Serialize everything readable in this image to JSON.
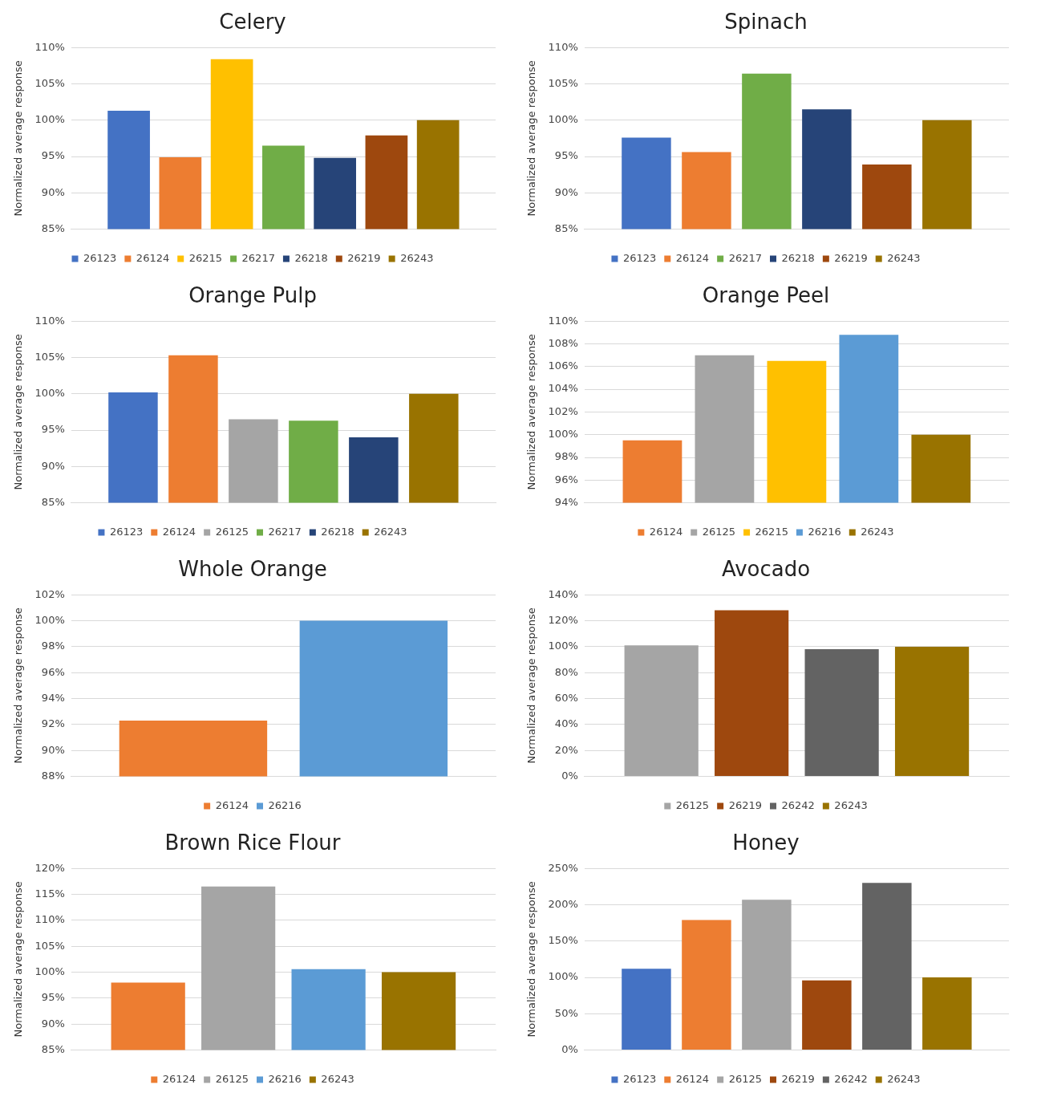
{
  "chart_data": [
    {
      "type": "bar",
      "title": "Celery",
      "ylabel": "Normalized average response",
      "categories": [
        null
      ],
      "ylim": [
        85,
        110
      ],
      "yticks": [
        {
          "value": 85,
          "label": "85%"
        },
        {
          "value": 90,
          "label": "90%"
        },
        {
          "value": 95,
          "label": "95%"
        },
        {
          "value": 100,
          "label": "100%"
        },
        {
          "value": 105,
          "label": "105%"
        },
        {
          "value": 110,
          "label": "110%"
        }
      ],
      "grid": "y",
      "legend": "bottom",
      "series": [
        {
          "name": "26123",
          "color": "#4472c4",
          "values": [
            101.3
          ]
        },
        {
          "name": "26124",
          "color": "#ed7d31",
          "values": [
            94.9
          ]
        },
        {
          "name": "26215",
          "color": "#ffc000",
          "values": [
            108.4
          ]
        },
        {
          "name": "26217",
          "color": "#70ad47",
          "values": [
            96.5
          ]
        },
        {
          "name": "26218",
          "color": "#264478",
          "values": [
            94.8
          ]
        },
        {
          "name": "26219",
          "color": "#9e480e",
          "values": [
            97.9
          ]
        },
        {
          "name": "26243",
          "color": "#997300",
          "values": [
            100
          ]
        }
      ]
    },
    {
      "type": "bar",
      "title": "Spinach",
      "ylabel": "Normalized average response",
      "categories": [
        null
      ],
      "ylim": [
        85,
        110
      ],
      "yticks": [
        {
          "value": 85,
          "label": "85%"
        },
        {
          "value": 90,
          "label": "90%"
        },
        {
          "value": 95,
          "label": "95%"
        },
        {
          "value": 100,
          "label": "100%"
        },
        {
          "value": 105,
          "label": "105%"
        },
        {
          "value": 110,
          "label": "110%"
        }
      ],
      "grid": "y",
      "legend": "bottom",
      "series": [
        {
          "name": "26123",
          "color": "#4472c4",
          "values": [
            97.6
          ]
        },
        {
          "name": "26124",
          "color": "#ed7d31",
          "values": [
            95.6
          ]
        },
        {
          "name": "26217",
          "color": "#70ad47",
          "values": [
            106.4
          ]
        },
        {
          "name": "26218",
          "color": "#264478",
          "values": [
            101.5
          ]
        },
        {
          "name": "26219",
          "color": "#9e480e",
          "values": [
            93.9
          ]
        },
        {
          "name": "26243",
          "color": "#997300",
          "values": [
            100
          ]
        }
      ]
    },
    {
      "type": "bar",
      "title": "Orange Pulp",
      "ylabel": "Normalized average response",
      "categories": [
        null
      ],
      "ylim": [
        85,
        110
      ],
      "yticks": [
        {
          "value": 85,
          "label": "85%"
        },
        {
          "value": 90,
          "label": "90%"
        },
        {
          "value": 95,
          "label": "95%"
        },
        {
          "value": 100,
          "label": "100%"
        },
        {
          "value": 105,
          "label": "105%"
        },
        {
          "value": 110,
          "label": "110%"
        }
      ],
      "grid": "y",
      "legend": "bottom",
      "series": [
        {
          "name": "26123",
          "color": "#4472c4",
          "values": [
            100.2
          ]
        },
        {
          "name": "26124",
          "color": "#ed7d31",
          "values": [
            105.3
          ]
        },
        {
          "name": "26125",
          "color": "#a5a5a5",
          "values": [
            96.5
          ]
        },
        {
          "name": "26217",
          "color": "#70ad47",
          "values": [
            96.3
          ]
        },
        {
          "name": "26218",
          "color": "#264478",
          "values": [
            94
          ]
        },
        {
          "name": "26243",
          "color": "#997300",
          "values": [
            100
          ]
        }
      ]
    },
    {
      "type": "bar",
      "title": "Orange Peel",
      "ylabel": "Normalized average response",
      "categories": [
        null
      ],
      "ylim": [
        94,
        110
      ],
      "yticks": [
        {
          "value": 94,
          "label": "94%"
        },
        {
          "value": 96,
          "label": "96%"
        },
        {
          "value": 98,
          "label": "98%"
        },
        {
          "value": 100,
          "label": "100%"
        },
        {
          "value": 102,
          "label": "102%"
        },
        {
          "value": 104,
          "label": "104%"
        },
        {
          "value": 106,
          "label": "106%"
        },
        {
          "value": 108,
          "label": "108%"
        },
        {
          "value": 110,
          "label": "110%"
        }
      ],
      "grid": "y",
      "legend": "bottom",
      "series": [
        {
          "name": "26124",
          "color": "#ed7d31",
          "values": [
            99.5
          ]
        },
        {
          "name": "26125",
          "color": "#a5a5a5",
          "values": [
            107
          ]
        },
        {
          "name": "26215",
          "color": "#ffc000",
          "values": [
            106.5
          ]
        },
        {
          "name": "26216",
          "color": "#5b9bd5",
          "values": [
            108.8
          ]
        },
        {
          "name": "26243",
          "color": "#997300",
          "values": [
            100
          ]
        }
      ]
    },
    {
      "type": "bar",
      "title": "Whole Orange",
      "ylabel": "Normalized average response",
      "categories": [
        null
      ],
      "ylim": [
        88,
        102
      ],
      "yticks": [
        {
          "value": 88,
          "label": "88%"
        },
        {
          "value": 90,
          "label": "90%"
        },
        {
          "value": 92,
          "label": "92%"
        },
        {
          "value": 94,
          "label": "94%"
        },
        {
          "value": 96,
          "label": "96%"
        },
        {
          "value": 98,
          "label": "98%"
        },
        {
          "value": 100,
          "label": "100%"
        },
        {
          "value": 102,
          "label": "102%"
        }
      ],
      "grid": "y",
      "legend": "bottom",
      "series": [
        {
          "name": "26124",
          "color": "#ed7d31",
          "values": [
            92.3
          ]
        },
        {
          "name": "26216",
          "color": "#5b9bd5",
          "values": [
            100
          ]
        }
      ]
    },
    {
      "type": "bar",
      "title": "Avocado",
      "ylabel": "Normalized average response",
      "categories": [
        null
      ],
      "ylim": [
        0,
        140
      ],
      "yticks": [
        {
          "value": 0,
          "label": "0%"
        },
        {
          "value": 20,
          "label": "20%"
        },
        {
          "value": 40,
          "label": "40%"
        },
        {
          "value": 60,
          "label": "60%"
        },
        {
          "value": 80,
          "label": "80%"
        },
        {
          "value": 100,
          "label": "100%"
        },
        {
          "value": 120,
          "label": "120%"
        },
        {
          "value": 140,
          "label": "140%"
        }
      ],
      "grid": "y",
      "legend": "bottom",
      "series": [
        {
          "name": "26125",
          "color": "#a5a5a5",
          "values": [
            101
          ]
        },
        {
          "name": "26219",
          "color": "#9e480e",
          "values": [
            128
          ]
        },
        {
          "name": "26242",
          "color": "#636363",
          "values": [
            98
          ]
        },
        {
          "name": "26243",
          "color": "#997300",
          "values": [
            100
          ]
        }
      ]
    },
    {
      "type": "bar",
      "title": "Brown Rice Flour",
      "ylabel": "Normalized average response",
      "categories": [
        null
      ],
      "ylim": [
        85,
        120
      ],
      "yticks": [
        {
          "value": 85,
          "label": "85%"
        },
        {
          "value": 90,
          "label": "90%"
        },
        {
          "value": 95,
          "label": "95%"
        },
        {
          "value": 100,
          "label": "100%"
        },
        {
          "value": 105,
          "label": "105%"
        },
        {
          "value": 110,
          "label": "110%"
        },
        {
          "value": 115,
          "label": "115%"
        },
        {
          "value": 120,
          "label": "120%"
        }
      ],
      "grid": "y",
      "legend": "bottom",
      "series": [
        {
          "name": "26124",
          "color": "#ed7d31",
          "values": [
            98
          ]
        },
        {
          "name": "26125",
          "color": "#a5a5a5",
          "values": [
            116.5
          ]
        },
        {
          "name": "26216",
          "color": "#5b9bd5",
          "values": [
            100.6
          ]
        },
        {
          "name": "26243",
          "color": "#997300",
          "values": [
            100
          ]
        }
      ]
    },
    {
      "type": "bar",
      "title": "Honey",
      "ylabel": "Normalized average response",
      "categories": [
        null
      ],
      "ylim": [
        0,
        250
      ],
      "yticks": [
        {
          "value": 0,
          "label": "0%"
        },
        {
          "value": 50,
          "label": "50%"
        },
        {
          "value": 100,
          "label": "100%"
        },
        {
          "value": 150,
          "label": "150%"
        },
        {
          "value": 200,
          "label": "200%"
        },
        {
          "value": 250,
          "label": "250%"
        }
      ],
      "grid": "y",
      "legend": "bottom",
      "series": [
        {
          "name": "26123",
          "color": "#4472c4",
          "values": [
            112
          ]
        },
        {
          "name": "26124",
          "color": "#ed7d31",
          "values": [
            179
          ]
        },
        {
          "name": "26125",
          "color": "#a5a5a5",
          "values": [
            207
          ]
        },
        {
          "name": "26219",
          "color": "#9e480e",
          "values": [
            96
          ]
        },
        {
          "name": "26242",
          "color": "#636363",
          "values": [
            230
          ]
        },
        {
          "name": "26243",
          "color": "#997300",
          "values": [
            100
          ]
        }
      ]
    }
  ]
}
